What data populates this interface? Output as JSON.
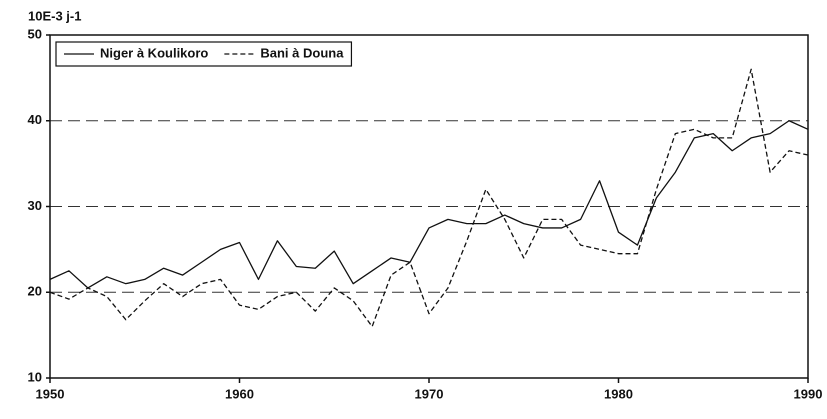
{
  "chart_data": {
    "type": "line",
    "ylabel": "10E-3 j-1",
    "x": [
      1950,
      1951,
      1952,
      1953,
      1954,
      1955,
      1956,
      1957,
      1958,
      1959,
      1960,
      1961,
      1962,
      1963,
      1964,
      1965,
      1966,
      1967,
      1968,
      1969,
      1970,
      1971,
      1972,
      1973,
      1974,
      1975,
      1976,
      1977,
      1978,
      1979,
      1980,
      1981,
      1982,
      1983,
      1984,
      1985,
      1986,
      1987,
      1988,
      1989,
      1990
    ],
    "series": [
      {
        "name": "Niger à Koulikoro",
        "color": "#111111",
        "dash": "solid",
        "values": [
          21.5,
          22.5,
          20.5,
          21.8,
          21,
          21.5,
          22.8,
          22,
          23.5,
          25,
          25.8,
          21.5,
          26,
          23,
          22.8,
          24.8,
          21,
          22.5,
          24,
          23.5,
          27.5,
          28.5,
          28,
          28,
          29,
          28,
          27.5,
          27.5,
          28.5,
          33,
          27,
          25.5,
          31,
          34,
          38,
          38.5,
          36.5,
          38,
          38.5,
          40,
          39
        ]
      },
      {
        "name": "Bani à Douna",
        "color": "#111111",
        "dash": "dashed",
        "values": [
          20,
          19.2,
          20.5,
          19.5,
          16.8,
          19,
          21,
          19.5,
          21,
          21.5,
          18.5,
          18,
          19.5,
          20,
          17.8,
          20.5,
          19,
          16,
          22,
          23.5,
          17.5,
          20.5,
          26,
          32,
          28.5,
          24,
          28.5,
          28.5,
          25.5,
          25,
          24.5,
          24.5,
          32,
          38.5,
          39,
          38,
          38,
          46,
          34,
          36.5,
          36
        ]
      }
    ],
    "xlim": [
      1950,
      1990
    ],
    "xticks": [
      1950,
      1960,
      1970,
      1980,
      1990
    ],
    "ylim": [
      10,
      50
    ],
    "yticks": [
      10,
      20,
      30,
      40,
      50
    ],
    "grid": true,
    "legend": "top-left"
  }
}
